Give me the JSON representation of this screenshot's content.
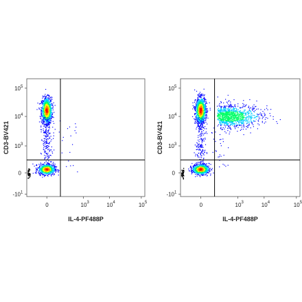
{
  "chart_data": [
    {
      "type": "scatter",
      "subtype": "flow-cytometry-density-dot-plot",
      "title": "",
      "xlabel": "IL-4-PF488P",
      "ylabel": "CD3-BV421",
      "x_scale": "biexponential",
      "y_scale": "biexponential",
      "xlim": [
        -1000,
        100000
      ],
      "ylim": [
        -10,
        100000
      ],
      "x_ticks": [
        {
          "value": 0,
          "label": "0"
        },
        {
          "value": 1000,
          "label": "10",
          "exp": "3"
        },
        {
          "value": 10000,
          "label": "10",
          "exp": "4"
        },
        {
          "value": 100000,
          "label": "10",
          "exp": "5"
        }
      ],
      "y_ticks": [
        {
          "value": -10,
          "label": "-10",
          "exp": "1"
        },
        {
          "value": 0,
          "label": "0"
        },
        {
          "value": 1000,
          "label": "10",
          "exp": "3"
        },
        {
          "value": 10000,
          "label": "10",
          "exp": "4"
        },
        {
          "value": 100000,
          "label": "10",
          "exp": "5"
        }
      ],
      "gate": {
        "x": 300,
        "y": 300
      },
      "populations": [
        {
          "center": [
            0,
            25000
          ],
          "spread": "high",
          "density": "high"
        },
        {
          "center": [
            0,
            0
          ],
          "spread": "low",
          "density": "high"
        }
      ],
      "colormap": [
        "#0000ff",
        "#00ccff",
        "#00ff66",
        "#ffff00",
        "#ff8800",
        "#ff0000"
      ],
      "grid": false
    },
    {
      "type": "scatter",
      "subtype": "flow-cytometry-density-dot-plot",
      "title": "",
      "xlabel": "IL-4-PF488P",
      "ylabel": "CD3-BV421",
      "x_scale": "biexponential",
      "y_scale": "biexponential",
      "xlim": [
        -1000,
        100000
      ],
      "ylim": [
        -10,
        100000
      ],
      "x_ticks": [
        {
          "value": 0,
          "label": "0"
        },
        {
          "value": 1000,
          "label": "10",
          "exp": "3"
        },
        {
          "value": 10000,
          "label": "10",
          "exp": "4"
        },
        {
          "value": 100000,
          "label": "10",
          "exp": "5"
        }
      ],
      "y_ticks": [
        {
          "value": -10,
          "label": "-10",
          "exp": "1"
        },
        {
          "value": 0,
          "label": "0"
        },
        {
          "value": 1000,
          "label": "10",
          "exp": "3"
        },
        {
          "value": 10000,
          "label": "10",
          "exp": "4"
        },
        {
          "value": 100000,
          "label": "10",
          "exp": "5"
        }
      ],
      "gate": {
        "x": 300,
        "y": 300
      },
      "populations": [
        {
          "center": [
            0,
            25000
          ],
          "spread": "high",
          "density": "high"
        },
        {
          "center": [
            2500,
            15000
          ],
          "spread": "wide",
          "density": "medium"
        },
        {
          "center": [
            0,
            0
          ],
          "spread": "low",
          "density": "high"
        }
      ],
      "colormap": [
        "#0000ff",
        "#00ccff",
        "#00ff66",
        "#ffff00",
        "#ff8800",
        "#ff0000"
      ],
      "grid": false
    }
  ]
}
